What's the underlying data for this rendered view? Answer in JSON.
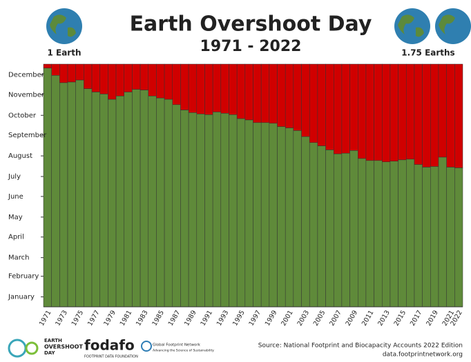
{
  "chart_data": {
    "type": "bar",
    "title": "Earth Overshoot Day",
    "subtitle": "1971 - 2022",
    "left_note": "1 Earth",
    "right_note": "1.75 Earths",
    "color": "#5f8a3a",
    "overshoot_color": "#d00000",
    "categories": [
      1971,
      null,
      1973,
      null,
      1975,
      null,
      1977,
      null,
      1979,
      null,
      1981,
      null,
      1983,
      null,
      1985,
      null,
      1987,
      null,
      1989,
      null,
      1991,
      null,
      1993,
      null,
      1995,
      null,
      1997,
      null,
      1999,
      null,
      2001,
      null,
      2003,
      null,
      2005,
      null,
      2007,
      null,
      2009,
      null,
      2011,
      null,
      2013,
      null,
      2015,
      null,
      2017,
      null,
      2019,
      null,
      2021,
      2022
    ],
    "values": [
      359,
      348,
      337,
      338,
      341,
      328,
      323,
      320,
      312,
      317,
      323,
      327,
      326,
      317,
      314,
      312,
      304,
      296,
      292,
      290,
      289,
      293,
      291,
      289,
      283,
      281,
      277,
      277,
      276,
      271,
      269,
      265,
      256,
      247,
      242,
      236,
      230,
      231,
      235,
      223,
      220,
      220,
      218,
      219,
      221,
      222,
      214,
      210,
      211,
      225,
      210,
      209
    ],
    "ylim": [
      0,
      365
    ],
    "yticks": [
      {
        "value": 15,
        "label": "January"
      },
      {
        "value": 46,
        "label": "February"
      },
      {
        "value": 74,
        "label": "March"
      },
      {
        "value": 105,
        "label": "April"
      },
      {
        "value": 135,
        "label": "May"
      },
      {
        "value": 166,
        "label": "June"
      },
      {
        "value": 196,
        "label": "July"
      },
      {
        "value": 227,
        "label": "August"
      },
      {
        "value": 258,
        "label": "September"
      },
      {
        "value": 288,
        "label": "October"
      },
      {
        "value": 319,
        "label": "November"
      },
      {
        "value": 349,
        "label": "December"
      }
    ],
    "grid": false
  },
  "footer": {
    "logo1": [
      "EARTH",
      "OVERSHOOT",
      "DAY"
    ],
    "logo2": "fodafo",
    "logo2_sub": "FOOTPRINT DATA FOUNDATION",
    "logo3": "Global Footprint Network",
    "logo3_sub": "Advancing the Science of Sustainability",
    "source": "Source: National Footprint and Biocapacity Accounts 2022 Edition",
    "url": "data.footprintnetwork.org"
  }
}
